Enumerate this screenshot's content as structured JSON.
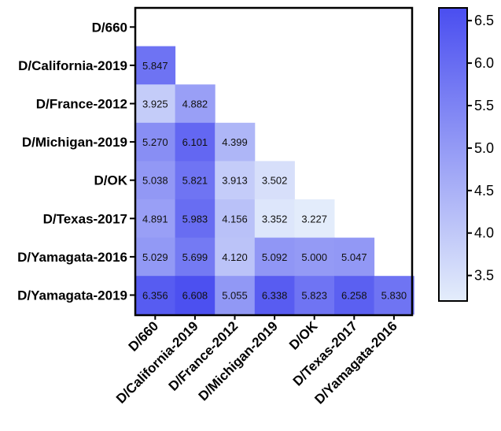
{
  "chart_data": {
    "type": "heatmap",
    "title": "",
    "xlabel": "",
    "ylabel": "",
    "rows": [
      "D/660",
      "D/California-2019",
      "D/France-2012",
      "D/Michigan-2019",
      "D/OK",
      "D/Texas-2017",
      "D/Yamagata-2016",
      "D/Yamagata-2019"
    ],
    "columns": [
      "D/660",
      "D/California-2019",
      "D/France-2012",
      "D/Michigan-2019",
      "D/OK",
      "D/Texas-2017",
      "D/Yamagata-2016"
    ],
    "values": [
      [
        null,
        null,
        null,
        null,
        null,
        null,
        null
      ],
      [
        "5.847",
        null,
        null,
        null,
        null,
        null,
        null
      ],
      [
        "3.925",
        "4.882",
        null,
        null,
        null,
        null,
        null
      ],
      [
        "5.270",
        "6.101",
        "4.399",
        null,
        null,
        null,
        null
      ],
      [
        "5.038",
        "5.821",
        "3.913",
        "3.502",
        null,
        null,
        null
      ],
      [
        "4.891",
        "5.983",
        "4.156",
        "3.352",
        "3.227",
        null,
        null
      ],
      [
        "5.029",
        "5.699",
        "4.120",
        "5.092",
        "5.000",
        "5.047",
        null
      ],
      [
        "6.356",
        "6.608",
        "5.055",
        "6.338",
        "5.823",
        "6.258",
        "5.830"
      ]
    ],
    "colorbar": {
      "range": [
        3.2,
        6.65
      ],
      "ticks": [
        "3.5",
        "4.0",
        "4.5",
        "5.0",
        "5.5",
        "6.0",
        "6.5"
      ],
      "color_low": "#e4edfb",
      "color_high": "#4a4ef0"
    },
    "lower_triangle_only": true,
    "grid": false
  }
}
